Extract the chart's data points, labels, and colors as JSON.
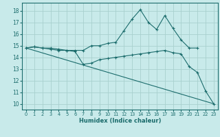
{
  "title": "",
  "xlabel": "Humidex (Indice chaleur)",
  "bg_color": "#c8eaea",
  "grid_color": "#a8d0ce",
  "line_color": "#1a6b6b",
  "xlim": [
    -0.5,
    23.5
  ],
  "ylim": [
    9.5,
    18.7
  ],
  "xticks": [
    0,
    1,
    2,
    3,
    4,
    5,
    6,
    7,
    8,
    9,
    10,
    11,
    12,
    13,
    14,
    15,
    16,
    17,
    18,
    19,
    20,
    21,
    22,
    23
  ],
  "yticks": [
    10,
    11,
    12,
    13,
    14,
    15,
    16,
    17,
    18
  ],
  "line1_x": [
    0,
    1,
    2,
    3,
    4,
    5,
    6,
    7,
    8,
    9,
    10,
    11,
    12,
    13,
    14,
    15,
    16,
    17,
    18,
    19,
    20,
    21
  ],
  "line1_y": [
    14.8,
    14.9,
    14.8,
    14.8,
    14.7,
    14.6,
    14.6,
    14.6,
    15.0,
    15.0,
    15.2,
    15.3,
    16.3,
    17.3,
    18.1,
    17.0,
    16.4,
    17.6,
    16.5,
    15.5,
    14.8,
    14.8
  ],
  "line2_x": [
    0,
    1,
    2,
    3,
    4,
    5,
    6,
    7,
    8,
    9,
    10,
    11,
    12,
    13,
    14,
    15,
    16,
    17,
    18,
    19,
    20,
    21,
    22,
    23
  ],
  "line2_y": [
    14.8,
    14.9,
    14.8,
    14.7,
    14.6,
    14.6,
    14.5,
    13.4,
    13.5,
    13.8,
    13.9,
    14.0,
    14.1,
    14.2,
    14.3,
    14.4,
    14.5,
    14.6,
    14.4,
    14.3,
    13.2,
    12.7,
    11.1,
    10.0
  ],
  "line3_x": [
    0,
    23
  ],
  "line3_y": [
    14.8,
    10.0
  ]
}
